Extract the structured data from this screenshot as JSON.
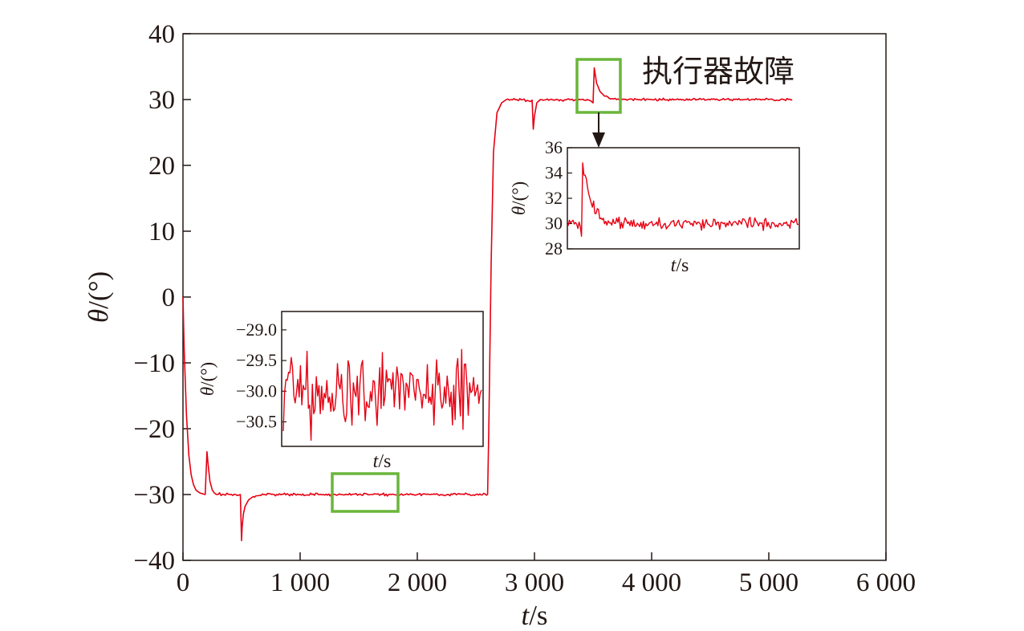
{
  "chart_data": {
    "type": "line",
    "title": "",
    "main": {
      "xlabel": {
        "italic": "t",
        "rest": "/s"
      },
      "ylabel": {
        "italic": "θ",
        "rest": "/(°)"
      },
      "xlim": [
        0,
        6000
      ],
      "ylim": [
        -40,
        40
      ],
      "xticks": [
        0,
        1000,
        2000,
        3000,
        4000,
        5000,
        6000
      ],
      "xtick_labels": [
        "0",
        "1 000",
        "2 000",
        "3 000",
        "4 000",
        "5 000",
        "6 000"
      ],
      "yticks": [
        40,
        30,
        20,
        10,
        0,
        -10,
        -20,
        -30,
        -40
      ],
      "ytick_labels": [
        "40",
        "30",
        "20",
        "10",
        "0",
        "−10",
        "−20",
        "−30",
        "−40"
      ],
      "series": [
        {
          "color": "#e60012",
          "x": [
            0,
            10,
            30,
            50,
            70,
            90,
            110,
            130,
            150,
            170,
            190,
            205,
            215,
            230,
            250,
            270,
            300,
            350,
            400,
            450,
            490,
            500,
            505,
            515,
            530,
            560,
            600,
            700,
            800,
            900,
            1000,
            1100,
            1200,
            1300,
            1400,
            1500,
            1600,
            1700,
            1800,
            1900,
            2000,
            2100,
            2200,
            2300,
            2400,
            2500,
            2600,
            2610,
            2630,
            2650,
            2680,
            2720,
            2760,
            2800,
            2850,
            2900,
            2950,
            2980,
            2990,
            3000,
            3020,
            3050,
            3100,
            3200,
            3300,
            3400,
            3450,
            3480,
            3500,
            3510,
            3530,
            3560,
            3600,
            3650,
            3700,
            3800,
            3900,
            4000,
            4200,
            4400,
            4600,
            4800,
            5000,
            5100,
            5200
          ],
          "y": [
            0,
            -8,
            -18,
            -24,
            -27,
            -28.5,
            -29.3,
            -29.6,
            -29.8,
            -29.9,
            -30,
            -23.5,
            -25.5,
            -28,
            -29.3,
            -29.8,
            -30,
            -30,
            -30,
            -30,
            -30,
            -37,
            -35,
            -33,
            -31.8,
            -30.8,
            -30.3,
            -30,
            -30,
            -30,
            -30,
            -30,
            -30,
            -30,
            -30,
            -30,
            -30,
            -30,
            -30,
            -30,
            -30,
            -30,
            -30,
            -30,
            -30,
            -30,
            -30,
            -20,
            5,
            22,
            28,
            29.5,
            30,
            30,
            30,
            30,
            29.8,
            29.9,
            25.5,
            27.5,
            29.5,
            30,
            30,
            30,
            30,
            30,
            30,
            29.8,
            29.5,
            34.8,
            32.5,
            31.2,
            30.5,
            30.1,
            30,
            30,
            30,
            30,
            30,
            30,
            30,
            30,
            30,
            30,
            30
          ]
        }
      ]
    },
    "inset_left": {
      "xlabel": {
        "italic": "t",
        "rest": "/s"
      },
      "ylabel": {
        "italic": "θ",
        "rest": "/(°)"
      },
      "ylim": [
        -30.9,
        -28.7
      ],
      "yticks": [
        -29.0,
        -29.5,
        -30.0,
        -30.5
      ],
      "ytick_labels": [
        "−29.0",
        "−29.5",
        "−30.0",
        "−30.5"
      ]
    },
    "inset_right": {
      "xlabel": {
        "italic": "t",
        "rest": "/s"
      },
      "ylabel": {
        "italic": "θ",
        "rest": "/(°)"
      },
      "ylim": [
        28,
        36
      ],
      "yticks": [
        36,
        34,
        32,
        30,
        28
      ],
      "ytick_labels": [
        "36",
        "34",
        "32",
        "30",
        "28"
      ]
    },
    "annotation": "执行器故障",
    "colors": {
      "series": "#e60012",
      "highlight": "#6ab63a",
      "axes": "#231815"
    }
  }
}
